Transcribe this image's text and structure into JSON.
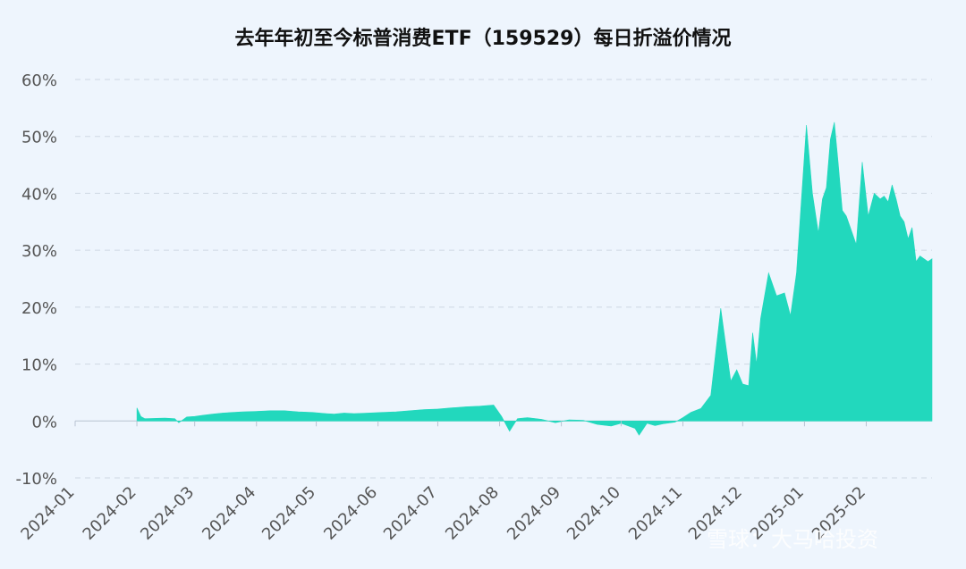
{
  "chart_data": {
    "type": "area",
    "title": "去年年初至今标普消费ETF（159529）每日折溢价情况",
    "ylim": [
      -10,
      60
    ],
    "yticks": [
      "60%",
      "50%",
      "40%",
      "30%",
      "20%",
      "10%",
      "0%",
      "-10%"
    ],
    "ytick_values": [
      60,
      50,
      40,
      30,
      20,
      10,
      0,
      -10
    ],
    "xticks": [
      "2024-01",
      "2024-02",
      "2024-03",
      "2024-04",
      "2024-05",
      "2024-06",
      "2024-07",
      "2024-08",
      "2024-09",
      "2024-10",
      "2024-11",
      "2024-12",
      "2025-01",
      "2025-02"
    ],
    "grid": true,
    "color": "#22d8bd",
    "series": [
      {
        "x": [
          "2024-02-01",
          "2024-02-03",
          "2024-02-05",
          "2024-02-15",
          "2024-02-20",
          "2024-02-22",
          "2024-02-26",
          "2024-03-01",
          "2024-03-05",
          "2024-03-10",
          "2024-03-15",
          "2024-03-20",
          "2024-03-25",
          "2024-04-01",
          "2024-04-08",
          "2024-04-15",
          "2024-04-22",
          "2024-04-29",
          "2024-05-06",
          "2024-05-10",
          "2024-05-15",
          "2024-05-20",
          "2024-05-27",
          "2024-06-03",
          "2024-06-10",
          "2024-06-17",
          "2024-06-24",
          "2024-07-01",
          "2024-07-08",
          "2024-07-15",
          "2024-07-22",
          "2024-07-29",
          "2024-08-02",
          "2024-08-06",
          "2024-08-10",
          "2024-08-15",
          "2024-08-22",
          "2024-08-29",
          "2024-09-05",
          "2024-09-12",
          "2024-09-19",
          "2024-09-26",
          "2024-10-01",
          "2024-10-08",
          "2024-10-10",
          "2024-10-14",
          "2024-10-18",
          "2024-10-22",
          "2024-10-28",
          "2024-11-01",
          "2024-11-05",
          "2024-11-10",
          "2024-11-15",
          "2024-11-20",
          "2024-11-25",
          "2024-11-28",
          "2024-12-01",
          "2024-12-04",
          "2024-12-06",
          "2024-12-08",
          "2024-12-10",
          "2024-12-14",
          "2024-12-18",
          "2024-12-22",
          "2024-12-25",
          "2024-12-28",
          "2025-01-02",
          "2025-01-05",
          "2025-01-08",
          "2025-01-10",
          "2025-01-12",
          "2025-01-14",
          "2025-01-16",
          "2025-01-18",
          "2025-01-20",
          "2025-01-22",
          "2025-01-24",
          "2025-01-27",
          "2025-01-30",
          "2025-02-02",
          "2025-02-05",
          "2025-02-08",
          "2025-02-10",
          "2025-02-12",
          "2025-02-14",
          "2025-02-16",
          "2025-02-18",
          "2025-02-20",
          "2025-02-22",
          "2025-02-24",
          "2025-02-26",
          "2025-02-28",
          "2025-03-02",
          "2025-03-04",
          "2025-03-06"
        ],
        "y": [
          2.3,
          0.8,
          0.4,
          0.5,
          0.4,
          -0.3,
          0.7,
          0.8,
          1.0,
          1.2,
          1.4,
          1.5,
          1.6,
          1.7,
          1.8,
          1.8,
          1.6,
          1.5,
          1.3,
          1.2,
          1.4,
          1.3,
          1.4,
          1.5,
          1.6,
          1.8,
          2.0,
          2.1,
          2.3,
          2.5,
          2.6,
          2.8,
          0.8,
          -1.8,
          0.4,
          0.6,
          0.3,
          -0.3,
          0.2,
          0.1,
          -0.6,
          -0.9,
          -0.4,
          -1.3,
          -2.5,
          -0.4,
          -0.8,
          -0.5,
          -0.2,
          0.6,
          1.5,
          2.2,
          4.5,
          19.8,
          7.0,
          9.0,
          6.5,
          6.2,
          15.5,
          10.0,
          18.0,
          26.0,
          22.0,
          22.5,
          18.5,
          26.0,
          52.0,
          40.0,
          33.0,
          39.0,
          41.0,
          49.5,
          52.5,
          45.0,
          37.0,
          36.0,
          34.0,
          31.0,
          45.5,
          36.0,
          40.0,
          39.0,
          39.5,
          38.5,
          41.5,
          39.0,
          36.0,
          35.0,
          32.0,
          34.0,
          28.0,
          29.0,
          28.5,
          28.0,
          28.5
        ]
      }
    ]
  },
  "watermark": {
    "text": "雪球：大马哈投资"
  }
}
